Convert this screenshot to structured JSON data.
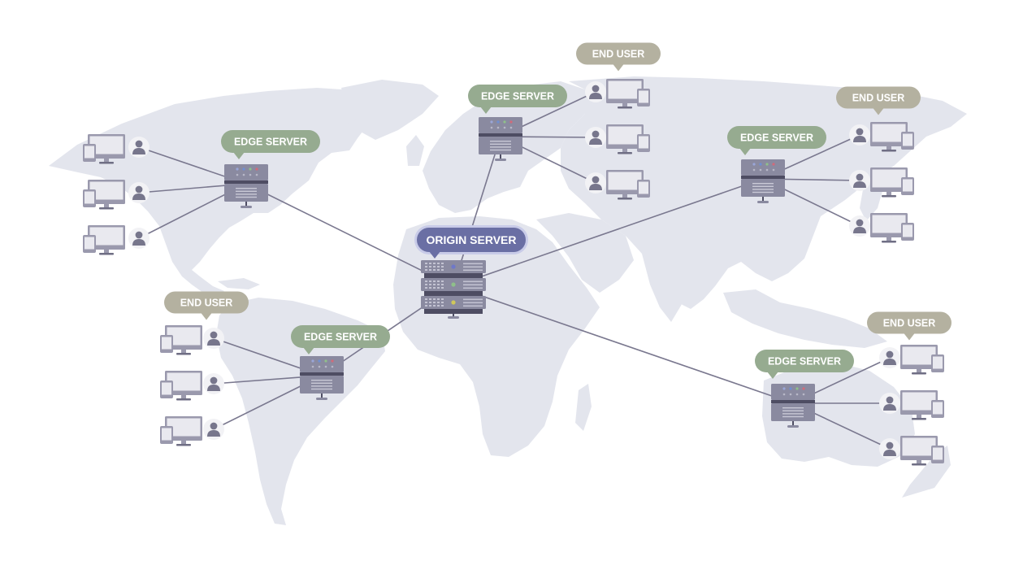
{
  "labels": {
    "origin": "ORIGIN SERVER",
    "edge": "EDGE SERVER",
    "end_user": "END USER"
  },
  "colors": {
    "background": "#ffffff",
    "land": "#e3e5ed",
    "connection_line": "#7a788f",
    "origin_badge": "#6a6fa4",
    "origin_badge_border": "#c8cbe8",
    "edge_badge": "#96ab90",
    "end_user_badge": "#b4b1a0",
    "server_body": "#8a8aa0",
    "server_dark": "#4e4d63",
    "device": "#9a99ad",
    "device_screen": "#e9e9ef",
    "user_icon": "#77768c",
    "user_circle": "#f2f2f5"
  },
  "icons": [
    "server-rack-icon",
    "desktop-monitor-icon",
    "tablet-icon",
    "user-person-icon",
    "world-map"
  ]
}
